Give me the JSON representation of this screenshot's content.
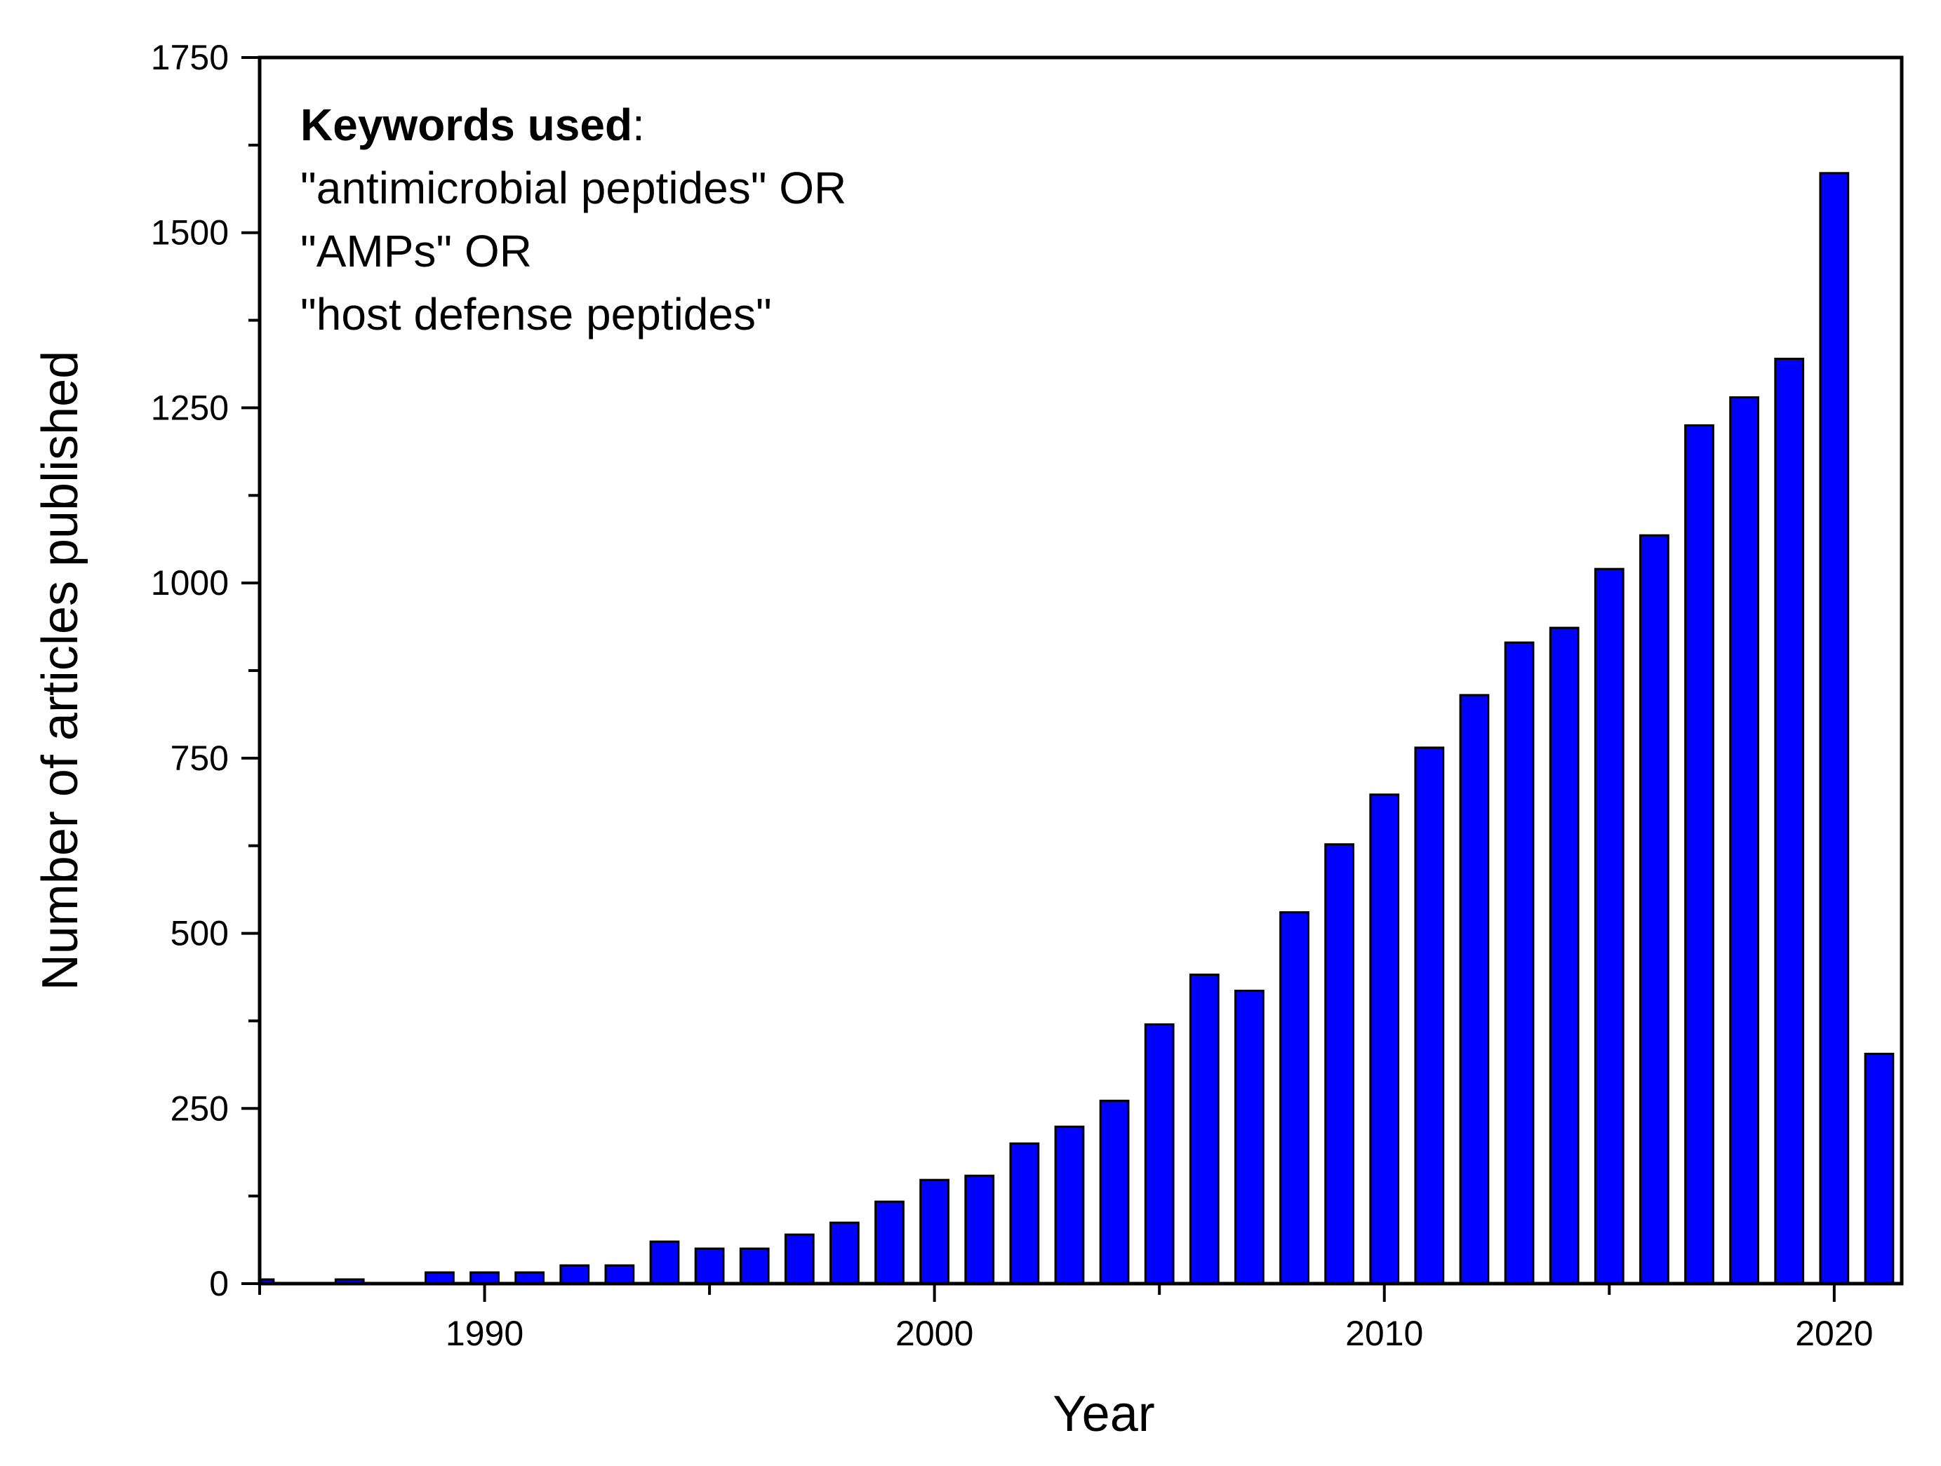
{
  "chart_data": {
    "type": "bar",
    "xlabel": "Year",
    "ylabel": "Number of articles published",
    "xlim": [
      1985,
      2021.5
    ],
    "ylim": [
      0,
      1750
    ],
    "x_ticks": [
      1990,
      2000,
      2010,
      2020
    ],
    "x_tick_labels": [
      "1990",
      "2000",
      "2010",
      "2020"
    ],
    "y_ticks": [
      0,
      250,
      500,
      750,
      1000,
      1250,
      1500,
      1750
    ],
    "y_tick_labels": [
      "0",
      "250",
      "500",
      "750",
      "1000",
      "1250",
      "1500",
      "1750"
    ],
    "grid": false,
    "bar_color": "#0000ff",
    "x": [
      1985,
      1986,
      1987,
      1988,
      1989,
      1990,
      1991,
      1992,
      1993,
      1994,
      1995,
      1996,
      1997,
      1998,
      1999,
      2000,
      2001,
      2002,
      2003,
      2004,
      2005,
      2006,
      2007,
      2008,
      2009,
      2010,
      2011,
      2012,
      2013,
      2014,
      2015,
      2016,
      2017,
      2018,
      2019,
      2020,
      2021
    ],
    "values": [
      6,
      0,
      6,
      0,
      16,
      16,
      16,
      26,
      26,
      60,
      50,
      50,
      70,
      87,
      117,
      148,
      154,
      200,
      224,
      261,
      370,
      441,
      418,
      530,
      627,
      698,
      765,
      840,
      915,
      936,
      1020,
      1068,
      1225,
      1265,
      1320,
      1585,
      328
    ]
  },
  "annotation": {
    "heading": "Keywords used",
    "heading_suffix": ":",
    "lines": [
      "\"antimicrobial peptides\" OR",
      "\"AMPs\" OR",
      "\"host defense peptides\""
    ]
  }
}
